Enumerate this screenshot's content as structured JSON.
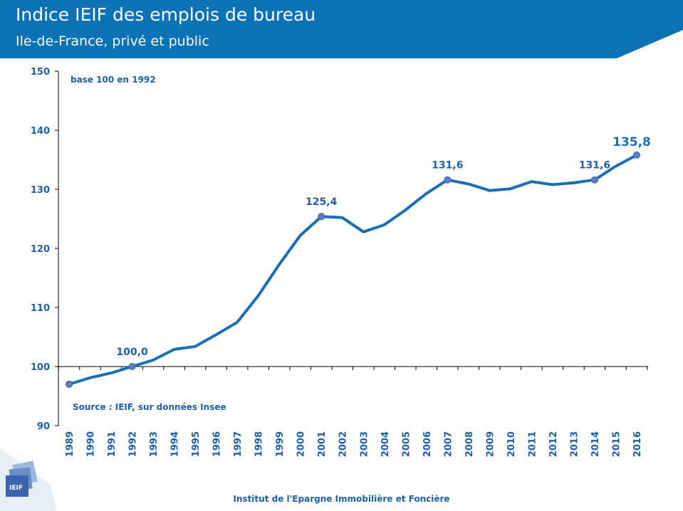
{
  "header": {
    "title": "Indice IEIF des emplois de bureau",
    "subtitle": "Ile-de-France, privé et public",
    "bg_color": "#0b72b6"
  },
  "chart_data": {
    "type": "line",
    "title": "Indice IEIF des emplois de bureau",
    "subtitle": "Ile-de-France, privé et public",
    "xlabel": "",
    "ylabel": "",
    "ylim": [
      90,
      150
    ],
    "yticks": [
      90,
      100,
      110,
      120,
      130,
      140,
      150
    ],
    "grid": false,
    "legend": "none",
    "color": "#1a6fb5",
    "note_top": "base 100 en 1992",
    "note_source": "Source : IEIF, sur données Insee",
    "x": [
      "1989",
      "1990",
      "1991",
      "1992",
      "1993",
      "1994",
      "1995",
      "1996",
      "1997",
      "1998",
      "1999",
      "2000",
      "2001",
      "2002",
      "2003",
      "2004",
      "2005",
      "2006",
      "2007",
      "2008",
      "2009",
      "2010",
      "2011",
      "2012",
      "2013",
      "2014",
      "2015",
      "2016"
    ],
    "series": [
      {
        "values": [
          97.0,
          98.1,
          98.9,
          100.0,
          101.1,
          102.9,
          103.4,
          105.4,
          107.5,
          112.0,
          117.3,
          122.2,
          125.4,
          125.2,
          122.8,
          124.0,
          126.5,
          129.3,
          131.6,
          130.9,
          129.8,
          130.1,
          131.3,
          130.8,
          131.1,
          131.6,
          133.9,
          135.8
        ]
      }
    ],
    "data_labels": [
      {
        "x": "1992",
        "text": "100,0"
      },
      {
        "x": "2001",
        "text": "125,4"
      },
      {
        "x": "2007",
        "text": "131,6"
      },
      {
        "x": "2014",
        "text": "131,6"
      },
      {
        "x": "2016",
        "text": "135,8"
      }
    ]
  },
  "footer": {
    "text": "Institut de l'Epargne Immobilière et Foncière",
    "logo_text": "IEIF"
  }
}
